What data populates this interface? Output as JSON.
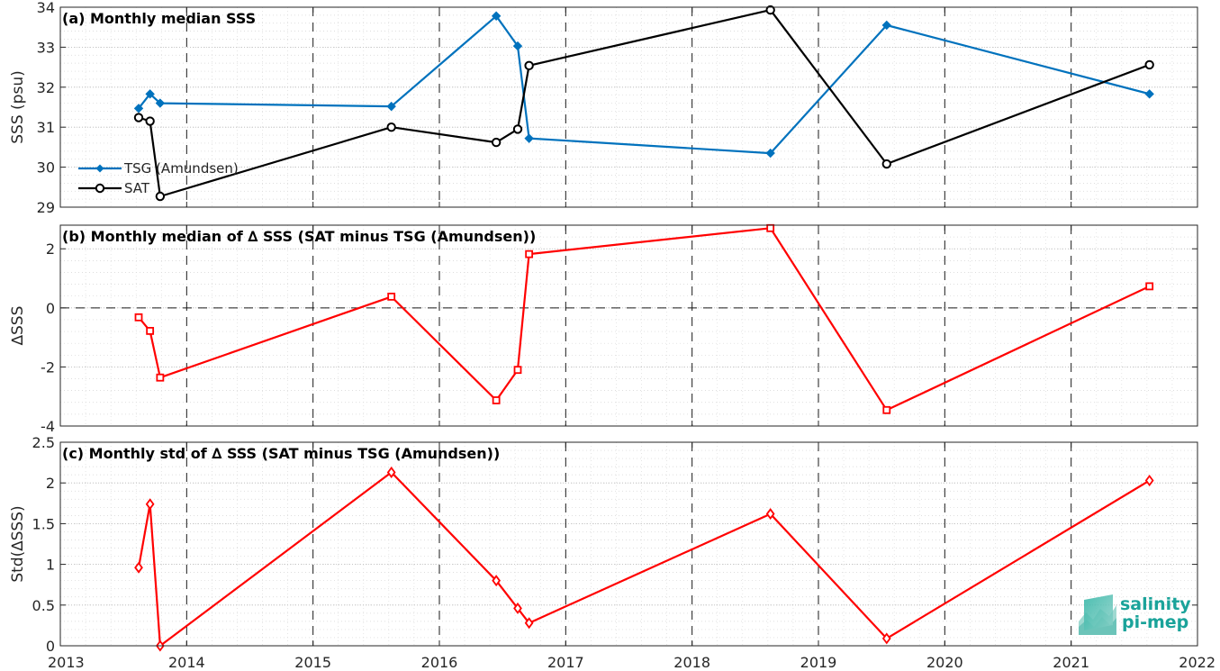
{
  "figure": {
    "x_ticks": [
      "2013",
      "2014",
      "2015",
      "2016",
      "2017",
      "2018",
      "2019",
      "2020",
      "2021",
      "2022"
    ],
    "logo": {
      "line1": "salinity",
      "line2": "pi-mep",
      "color": "#1aa39a"
    }
  },
  "chart_data": [
    {
      "type": "line",
      "panel": "a",
      "title": "(a) Monthly median SSS",
      "ylabel": "SSS (psu)",
      "xlim": [
        2013.0,
        2022.0
      ],
      "ylim": [
        29,
        34
      ],
      "y_ticks": [
        "29",
        "30",
        "31",
        "32",
        "33",
        "34"
      ],
      "grid": true,
      "legend_placement": "bottom-left",
      "series": [
        {
          "name": "TSG (Amundsen)",
          "color": "#0072bd",
          "marker": "diamond-filled",
          "x": [
            2013.62,
            2013.71,
            2013.79,
            2015.62,
            2016.45,
            2016.62,
            2016.71,
            2018.62,
            2019.54,
            2021.62
          ],
          "y": [
            31.47,
            31.83,
            31.6,
            31.52,
            33.78,
            33.03,
            30.72,
            30.35,
            33.55,
            31.83
          ]
        },
        {
          "name": "SAT",
          "color": "#000000",
          "marker": "circle-open",
          "x": [
            2013.62,
            2013.71,
            2013.79,
            2015.62,
            2016.45,
            2016.62,
            2016.71,
            2018.62,
            2019.54,
            2021.62
          ],
          "y": [
            31.24,
            31.15,
            29.27,
            31.0,
            30.62,
            30.95,
            32.54,
            33.93,
            30.08,
            32.56
          ]
        }
      ]
    },
    {
      "type": "line",
      "panel": "b",
      "title": "(b) Monthly median of ∆ SSS (SAT minus TSG (Amundsen))",
      "ylabel": "∆SSS",
      "xlim": [
        2013.0,
        2022.0
      ],
      "ylim": [
        -4,
        2.8
      ],
      "y_ticks": [
        "-4",
        "-2",
        "0",
        "2"
      ],
      "y_tick_values": [
        -4,
        -2,
        0,
        2
      ],
      "zero_line": true,
      "grid": true,
      "series": [
        {
          "color": "#ff0000",
          "marker": "square-open",
          "x": [
            2013.62,
            2013.71,
            2013.79,
            2015.62,
            2016.45,
            2016.62,
            2016.71,
            2018.62,
            2019.54,
            2021.62
          ],
          "y": [
            -0.32,
            -0.78,
            -2.36,
            0.38,
            -3.13,
            -2.1,
            1.82,
            2.7,
            -3.46,
            0.73
          ]
        }
      ]
    },
    {
      "type": "line",
      "panel": "c",
      "title": "(c) Monthly std of ∆ SSS (SAT minus TSG (Amundsen))",
      "ylabel": "Std(∆SSS)",
      "xlim": [
        2013.0,
        2022.0
      ],
      "ylim": [
        0,
        2.5
      ],
      "y_ticks": [
        "0",
        "0.5",
        "1",
        "1.5",
        "2",
        "2.5"
      ],
      "y_tick_values": [
        0,
        0.5,
        1,
        1.5,
        2,
        2.5
      ],
      "grid": true,
      "series": [
        {
          "color": "#ff0000",
          "marker": "diamond-open",
          "x": [
            2013.62,
            2013.71,
            2013.79,
            2015.62,
            2016.45,
            2016.62,
            2016.71,
            2018.62,
            2019.54,
            2021.62
          ],
          "y": [
            0.96,
            1.74,
            0.0,
            2.13,
            0.8,
            0.46,
            0.28,
            1.62,
            0.09,
            2.03
          ]
        }
      ]
    }
  ]
}
